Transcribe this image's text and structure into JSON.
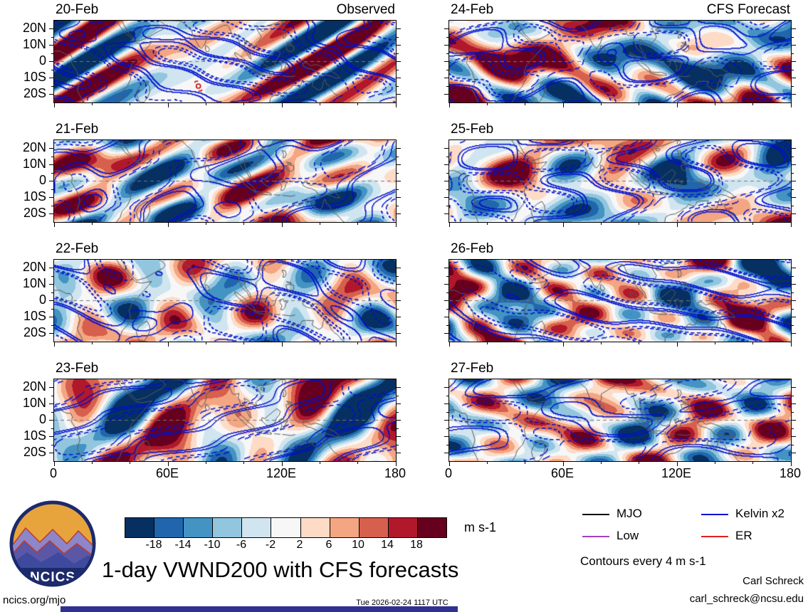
{
  "chart_data": {
    "type": "heatmap",
    "title": "1-day VWND200 with CFS forecasts",
    "columns": [
      {
        "header": "Observed",
        "dates": [
          "20-Feb",
          "21-Feb",
          "22-Feb",
          "23-Feb"
        ]
      },
      {
        "header": "CFS Forecast",
        "dates": [
          "24-Feb",
          "25-Feb",
          "26-Feb",
          "27-Feb"
        ]
      }
    ],
    "y_axis": {
      "tick_labels": [
        "20N",
        "10N",
        "0",
        "10S",
        "20S"
      ],
      "tick_lats": [
        20,
        10,
        0,
        -10,
        -20
      ],
      "lat_range": [
        -25,
        25
      ]
    },
    "x_axis": {
      "tick_labels": [
        "0",
        "60E",
        "120E",
        "180"
      ],
      "tick_lons": [
        0,
        60,
        120,
        180
      ],
      "lon_range": [
        0,
        180
      ]
    },
    "colorbar": {
      "boundaries": [
        -18,
        -14,
        -10,
        -6,
        -2,
        2,
        6,
        10,
        14,
        18
      ],
      "colors": [
        "#053061",
        "#2166ac",
        "#4393c3",
        "#92c5de",
        "#d1e5f0",
        "#f7f7f7",
        "#fddbc7",
        "#f4a582",
        "#d6604d",
        "#b2182b",
        "#67001f"
      ],
      "units": "m s-1"
    },
    "legend": {
      "items": [
        {
          "label": "MJO",
          "color": "#000000"
        },
        {
          "label": "Kelvin x2",
          "color": "#0011cc"
        },
        {
          "label": "Low",
          "color": "#a040c0"
        },
        {
          "label": "ER",
          "color": "#e02020"
        }
      ],
      "note": "Contours every 4 m s-1"
    },
    "markers": [
      {
        "panel": "20-Feb",
        "type": "tropical-cyclone",
        "lon": 76,
        "lat": -15,
        "color": "#cc0000"
      }
    ]
  },
  "footer": {
    "site": "ncics.org/mjo",
    "timestamp": "Tue 2026-02-24 1117 UTC",
    "credit": "Carl Schreck",
    "email": "carl_schreck@ncsu.edu"
  },
  "logo": {
    "text": "NCICS"
  }
}
